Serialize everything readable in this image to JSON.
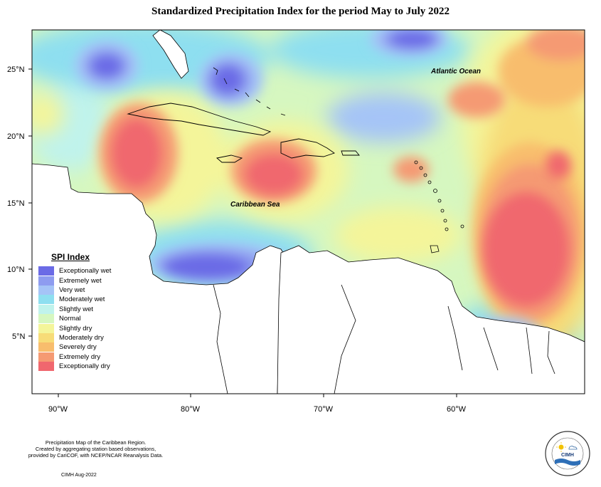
{
  "title": "Standardized Precipitation Index for the period May to July 2022",
  "map": {
    "ocean_labels": [
      "Atlantic Ocean",
      "Caribbean Sea"
    ],
    "lat_labels": [
      "25°N",
      "20°N",
      "15°N",
      "10°N",
      "5°N"
    ],
    "lon_labels": [
      "90°W",
      "80°W",
      "70°W",
      "60°W"
    ]
  },
  "legend": {
    "title": "SPI Index",
    "items": [
      {
        "label": "Exceptionally wet",
        "color": "#6b6be6"
      },
      {
        "label": "Extremely wet",
        "color": "#8e9cf0"
      },
      {
        "label": "Very wet",
        "color": "#a5c4f7"
      },
      {
        "label": "Moderately wet",
        "color": "#8edff0"
      },
      {
        "label": "Slightly wet",
        "color": "#c0f3ec"
      },
      {
        "label": "Normal",
        "color": "#d6f7c0"
      },
      {
        "label": "Slightly dry",
        "color": "#f4f59a"
      },
      {
        "label": "Moderately dry",
        "color": "#f7dc78"
      },
      {
        "label": "Severely dry",
        "color": "#f8bd6d"
      },
      {
        "label": "Extremely dry",
        "color": "#f59a73"
      },
      {
        "label": "Exceptionally dry",
        "color": "#f0676e"
      }
    ]
  },
  "footer": {
    "line1": "Precipitation Map of the Caribbean Region.",
    "line2": "Created by aggregating station based observations,",
    "line3": "provided by CariCOF, with NCEP/NCAR Reanalysis Data.",
    "date": "CIMH Aug-2022"
  },
  "logo": {
    "text": "CIMH"
  }
}
